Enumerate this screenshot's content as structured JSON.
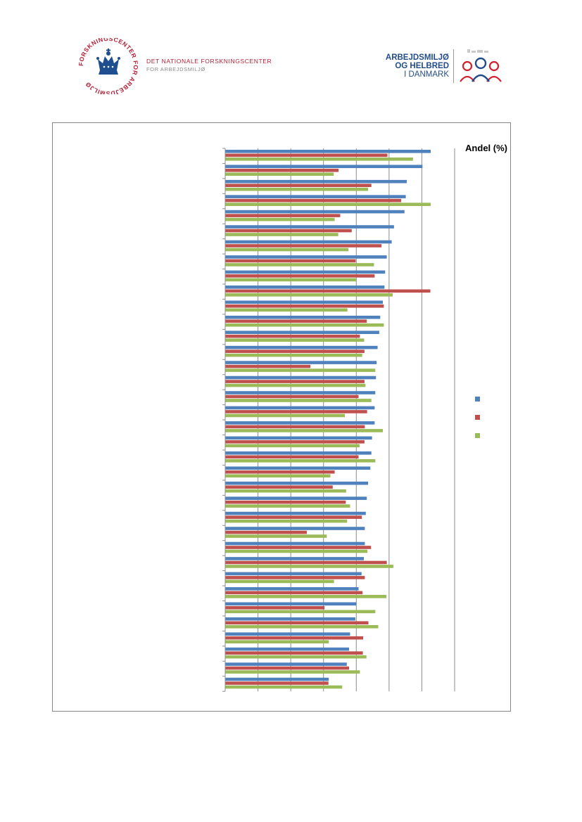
{
  "header": {
    "left_logo": {
      "seal_text": "FORSKNINGSCENTER FOR ARBEJDSMILJØ",
      "org_line1": "DET NATIONALE FORSKNINGSCENTER",
      "org_line2": "FOR ARBEJDSMILJØ"
    },
    "right_logo": {
      "line1": "ARBEJDSMILJØ",
      "line2": "OG HELBRED",
      "line3": "I DANMARK"
    }
  },
  "colors": {
    "series1": "#4f81bd",
    "series2": "#c0504d",
    "series3": "#9bbb59",
    "brand_red": "#b11f36",
    "brand_blue": "#234d8a"
  },
  "chart_data": {
    "type": "bar",
    "orientation": "horizontal",
    "title": "",
    "xlabel": "Andel (%)",
    "ylabel": "",
    "grid": true,
    "legend_placement": "right",
    "xlim": [
      0,
      70
    ],
    "categories": [
      "",
      "",
      "",
      "",
      "",
      "",
      "",
      "",
      "",
      "",
      "",
      "",
      "",
      "",
      "",
      "",
      "",
      "",
      "",
      "",
      "",
      "",
      "",
      "",
      "",
      "",
      "",
      "",
      "",
      "",
      "",
      "",
      "",
      "",
      "",
      ""
    ],
    "series": [
      {
        "values": [
          62.7,
          60.2,
          55.4,
          55.1,
          54.7,
          51.5,
          50.8,
          49.3,
          48.8,
          48.6,
          48.1,
          47.3,
          47.0,
          46.5,
          46.2,
          46.0,
          45.8,
          45.6,
          45.6,
          44.8,
          44.6,
          44.3,
          43.6,
          43.2,
          42.9,
          42.6,
          42.6,
          42.3,
          41.6,
          40.7,
          40.0,
          39.7,
          38.1,
          37.8,
          37.1,
          31.6
        ]
      },
      {
        "values": [
          49.5,
          34.6,
          44.6,
          53.7,
          35.1,
          38.6,
          47.7,
          39.8,
          45.6,
          62.6,
          48.4,
          43.2,
          41.1,
          42.5,
          26.0,
          42.5,
          40.7,
          43.3,
          42.6,
          42.5,
          40.7,
          33.4,
          32.8,
          36.8,
          41.7,
          24.9,
          44.5,
          49.3,
          42.6,
          41.9,
          30.3,
          43.7,
          42.1,
          42.0,
          37.8,
          31.5
        ]
      },
      {
        "values": [
          57.3,
          33.1,
          43.6,
          62.7,
          33.4,
          34.5,
          37.6,
          45.4,
          39.9,
          51.1,
          37.3,
          48.4,
          42.4,
          41.8,
          45.8,
          42.8,
          44.6,
          36.5,
          48.1,
          41.0,
          45.8,
          32.1,
          36.9,
          38.1,
          37.2,
          31.0,
          43.4,
          51.3,
          33.2,
          49.2,
          45.8,
          46.7,
          31.6,
          43.1,
          41.1,
          35.7
        ]
      }
    ]
  }
}
